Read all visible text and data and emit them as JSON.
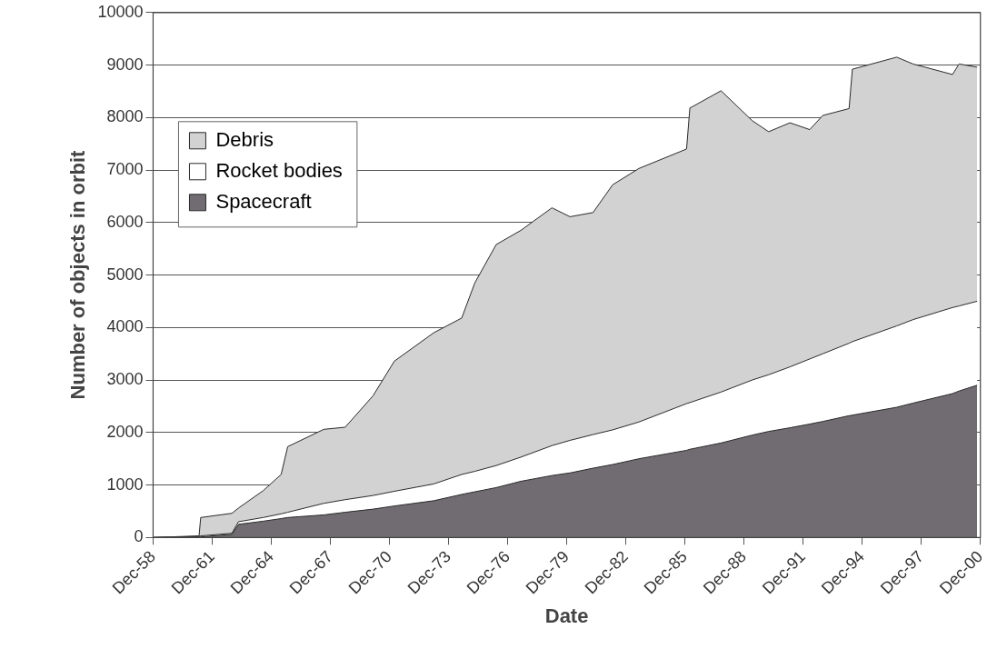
{
  "chart_data": {
    "type": "area",
    "xlabel": "Date",
    "ylabel": "Number of objects in orbit",
    "stacked": true,
    "grid": "y",
    "legend": "top left",
    "marker": "none",
    "x": [
      "1958-12",
      "1961-04",
      "1961-05",
      "1962-12",
      "1963-04",
      "1964-07",
      "1965-06",
      "1965-10",
      "1967-08",
      "1968-09",
      "1970-02",
      "1971-03",
      "1973-03",
      "1974-08",
      "1975-04",
      "1976-05",
      "1977-08",
      "1979-03",
      "1980-02",
      "1981-04",
      "1982-04",
      "1983-08",
      "1986-01",
      "1986-03",
      "1987-10",
      "1989-05",
      "1990-03",
      "1991-04",
      "1992-04",
      "1992-12",
      "1994-04",
      "1994-06",
      "1996-09",
      "1997-07",
      "1999-07",
      "1999-11",
      "2000-10"
    ],
    "series": [
      {
        "name": "Spacecraft",
        "color": "#716c72",
        "values": [
          0,
          10,
          10,
          60,
          250,
          310,
          360,
          380,
          430,
          480,
          540,
          600,
          700,
          820,
          870,
          950,
          1070,
          1180,
          1230,
          1320,
          1390,
          1500,
          1660,
          1680,
          1800,
          1950,
          2020,
          2090,
          2160,
          2210,
          2320,
          2330,
          2480,
          2560,
          2740,
          2790,
          2900
        ]
      },
      {
        "name": "Rocket bodies",
        "color": "#ffffff",
        "values": [
          0,
          10,
          20,
          20,
          50,
          70,
          90,
          100,
          220,
          240,
          260,
          280,
          320,
          380,
          390,
          420,
          460,
          570,
          620,
          640,
          660,
          700,
          890,
          890,
          970,
          1050,
          1080,
          1160,
          1240,
          1290,
          1380,
          1400,
          1550,
          1590,
          1640,
          1620,
          1600
        ]
      },
      {
        "name": "Debris",
        "color": "#d2d2d2",
        "values": [
          0,
          10,
          350,
          380,
          260,
          510,
          750,
          1250,
          1410,
          1380,
          1900,
          2480,
          2880,
          2980,
          3590,
          4210,
          4320,
          4530,
          4260,
          4230,
          4670,
          4830,
          4850,
          5610,
          5740,
          4940,
          4630,
          4650,
          4370,
          4540,
          4470,
          5190,
          5120,
          4870,
          4440,
          4610,
          4460
        ]
      }
    ],
    "xlim": [
      "1958-12",
      "2000-12"
    ],
    "xticks": [
      {
        "value": "1958-12",
        "label": "Dec-58"
      },
      {
        "value": "1961-12",
        "label": "Dec-61"
      },
      {
        "value": "1964-12",
        "label": "Dec-64"
      },
      {
        "value": "1967-12",
        "label": "Dec-67"
      },
      {
        "value": "1970-12",
        "label": "Dec-70"
      },
      {
        "value": "1973-12",
        "label": "Dec-73"
      },
      {
        "value": "1976-12",
        "label": "Dec-76"
      },
      {
        "value": "1979-12",
        "label": "Dec-79"
      },
      {
        "value": "1982-12",
        "label": "Dec-82"
      },
      {
        "value": "1985-12",
        "label": "Dec-85"
      },
      {
        "value": "1988-12",
        "label": "Dec-88"
      },
      {
        "value": "1991-12",
        "label": "Dec-91"
      },
      {
        "value": "1994-12",
        "label": "Dec-94"
      },
      {
        "value": "1997-12",
        "label": "Dec-97"
      },
      {
        "value": "2000-12",
        "label": "Dec-00"
      }
    ],
    "ylim": [
      0,
      10000
    ],
    "yticks": [
      0,
      1000,
      2000,
      3000,
      4000,
      5000,
      6000,
      7000,
      8000,
      9000,
      10000
    ]
  }
}
